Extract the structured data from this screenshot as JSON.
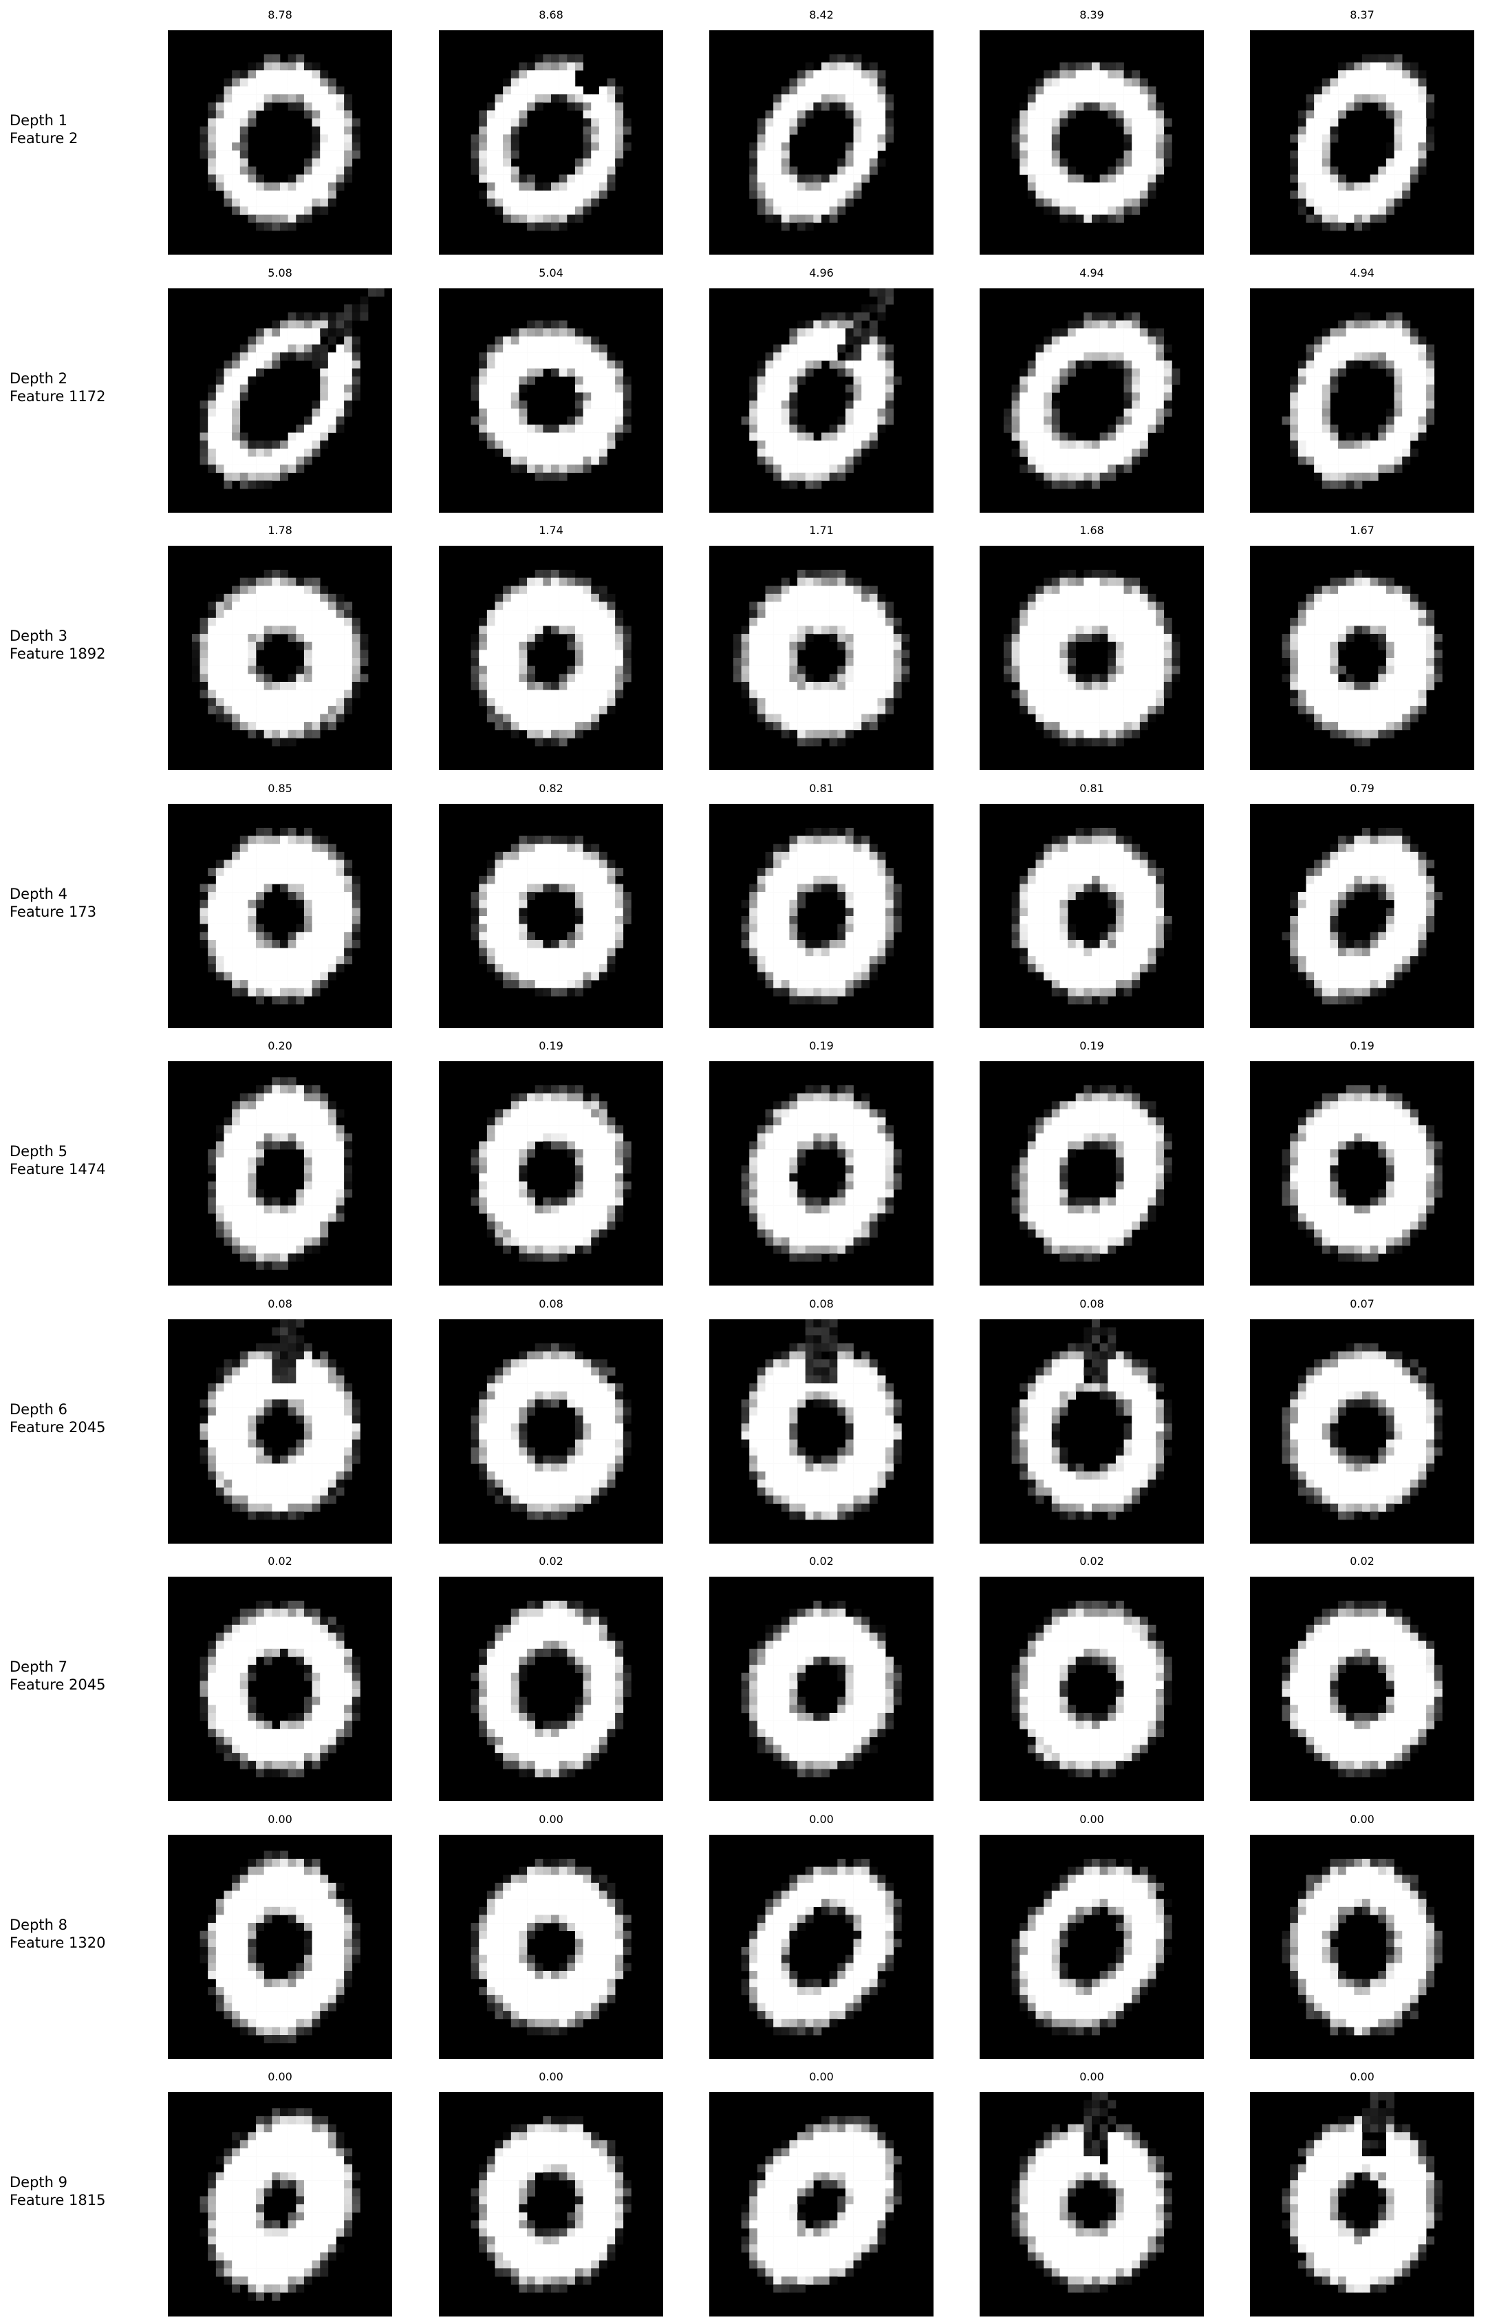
{
  "rows": [
    {
      "depth": "Depth 1",
      "feature": "Feature 2",
      "scores": [
        "8.78",
        "8.68",
        "8.42",
        "8.39",
        "8.37"
      ],
      "images": [
        {
          "rx": 0.32,
          "ry": 0.36,
          "rot": 15,
          "w": 0.2,
          "hole": 0.48,
          "shape": "ring"
        },
        {
          "rx": 0.31,
          "ry": 0.38,
          "rot": 25,
          "w": 0.18,
          "hole": 0.5,
          "shape": "open-ring"
        },
        {
          "rx": 0.26,
          "ry": 0.39,
          "rot": 30,
          "w": 0.18,
          "hole": 0.46,
          "shape": "ring"
        },
        {
          "rx": 0.33,
          "ry": 0.34,
          "rot": 10,
          "w": 0.22,
          "hole": 0.44,
          "shape": "ring"
        },
        {
          "rx": 0.28,
          "ry": 0.39,
          "rot": 25,
          "w": 0.18,
          "hole": 0.46,
          "shape": "ring"
        }
      ]
    },
    {
      "depth": "Depth 2",
      "feature": "Feature 1172",
      "scores": [
        "5.08",
        "5.04",
        "4.96",
        "4.94",
        "4.94"
      ],
      "images": [
        {
          "rx": 0.27,
          "ry": 0.42,
          "rot": 40,
          "w": 0.16,
          "hole": 0.52,
          "shape": "notch"
        },
        {
          "rx": 0.34,
          "ry": 0.32,
          "rot": 20,
          "w": 0.26,
          "hole": 0.36,
          "shape": "ring"
        },
        {
          "rx": 0.29,
          "ry": 0.38,
          "rot": 30,
          "w": 0.24,
          "hole": 0.4,
          "shape": "notch"
        },
        {
          "rx": 0.31,
          "ry": 0.4,
          "rot": 40,
          "w": 0.18,
          "hole": 0.48,
          "shape": "ring"
        },
        {
          "rx": 0.3,
          "ry": 0.38,
          "rot": 25,
          "w": 0.2,
          "hole": 0.46,
          "shape": "ring"
        }
      ]
    },
    {
      "depth": "Depth 3",
      "feature": "Feature 1892",
      "scores": [
        "1.78",
        "1.74",
        "1.71",
        "1.68",
        "1.67"
      ],
      "images": [
        {
          "rx": 0.36,
          "ry": 0.35,
          "rot": 10,
          "w": 0.3,
          "hole": 0.3,
          "shape": "ring"
        },
        {
          "rx": 0.33,
          "ry": 0.36,
          "rot": 15,
          "w": 0.28,
          "hole": 0.32,
          "shape": "ring"
        },
        {
          "rx": 0.36,
          "ry": 0.36,
          "rot": 0,
          "w": 0.3,
          "hole": 0.3,
          "shape": "ring"
        },
        {
          "rx": 0.36,
          "ry": 0.37,
          "rot": 0,
          "w": 0.34,
          "hole": 0.26,
          "shape": "ring"
        },
        {
          "rx": 0.33,
          "ry": 0.35,
          "rot": 5,
          "w": 0.26,
          "hole": 0.32,
          "shape": "ring"
        }
      ]
    },
    {
      "depth": "Depth 4",
      "feature": "Feature 173",
      "scores": [
        "0.85",
        "0.82",
        "0.81",
        "0.81",
        "0.79"
      ],
      "images": [
        {
          "rx": 0.34,
          "ry": 0.37,
          "rot": 10,
          "w": 0.3,
          "hole": 0.3,
          "shape": "ring"
        },
        {
          "rx": 0.33,
          "ry": 0.34,
          "rot": 15,
          "w": 0.26,
          "hole": 0.34,
          "shape": "ring"
        },
        {
          "rx": 0.32,
          "ry": 0.37,
          "rot": 20,
          "w": 0.26,
          "hole": 0.34,
          "shape": "ring"
        },
        {
          "rx": 0.33,
          "ry": 0.36,
          "rot": 10,
          "w": 0.28,
          "hole": 0.32,
          "shape": "ring"
        },
        {
          "rx": 0.29,
          "ry": 0.38,
          "rot": 30,
          "w": 0.24,
          "hole": 0.36,
          "shape": "ring"
        }
      ]
    },
    {
      "depth": "Depth 5",
      "feature": "Feature 1474",
      "scores": [
        "0.20",
        "0.19",
        "0.19",
        "0.19",
        "0.19"
      ],
      "images": [
        {
          "rx": 0.3,
          "ry": 0.39,
          "rot": 10,
          "w": 0.26,
          "hole": 0.34,
          "shape": "ring"
        },
        {
          "rx": 0.33,
          "ry": 0.37,
          "rot": 10,
          "w": 0.26,
          "hole": 0.34,
          "shape": "ring"
        },
        {
          "rx": 0.32,
          "ry": 0.37,
          "rot": 20,
          "w": 0.26,
          "hole": 0.34,
          "shape": "ring"
        },
        {
          "rx": 0.31,
          "ry": 0.38,
          "rot": 30,
          "w": 0.24,
          "hole": 0.36,
          "shape": "ring"
        },
        {
          "rx": 0.33,
          "ry": 0.36,
          "rot": 10,
          "w": 0.26,
          "hole": 0.34,
          "shape": "ring"
        }
      ]
    },
    {
      "depth": "Depth 6",
      "feature": "Feature 2045",
      "scores": [
        "0.08",
        "0.08",
        "0.08",
        "0.08",
        "0.07"
      ],
      "images": [
        {
          "rx": 0.34,
          "ry": 0.37,
          "rot": 5,
          "w": 0.28,
          "hole": 0.3,
          "shape": "notch"
        },
        {
          "rx": 0.33,
          "ry": 0.36,
          "rot": 15,
          "w": 0.24,
          "hole": 0.36,
          "shape": "ring"
        },
        {
          "rx": 0.34,
          "ry": 0.38,
          "rot": 0,
          "w": 0.26,
          "hole": 0.34,
          "shape": "notch"
        },
        {
          "rx": 0.33,
          "ry": 0.37,
          "rot": 5,
          "w": 0.18,
          "hole": 0.46,
          "shape": "notch"
        },
        {
          "rx": 0.33,
          "ry": 0.36,
          "rot": 15,
          "w": 0.24,
          "hole": 0.36,
          "shape": "ring"
        }
      ]
    },
    {
      "depth": "Depth 7",
      "feature": "Feature 2045",
      "scores": [
        "0.02",
        "0.02",
        "0.02",
        "0.02",
        "0.02"
      ],
      "images": [
        {
          "rx": 0.34,
          "ry": 0.36,
          "rot": 5,
          "w": 0.22,
          "hole": 0.4,
          "shape": "ring"
        },
        {
          "rx": 0.32,
          "ry": 0.38,
          "rot": 10,
          "w": 0.22,
          "hole": 0.42,
          "shape": "ring"
        },
        {
          "rx": 0.32,
          "ry": 0.36,
          "rot": 20,
          "w": 0.26,
          "hole": 0.32,
          "shape": "ring"
        },
        {
          "rx": 0.33,
          "ry": 0.37,
          "rot": 10,
          "w": 0.26,
          "hole": 0.34,
          "shape": "ring"
        },
        {
          "rx": 0.34,
          "ry": 0.36,
          "rot": 0,
          "w": 0.26,
          "hole": 0.34,
          "shape": "ring"
        }
      ]
    },
    {
      "depth": "Depth 8",
      "feature": "Feature 1320",
      "scores": [
        "0.00",
        "0.00",
        "0.00",
        "0.00",
        "0.00"
      ],
      "images": [
        {
          "rx": 0.32,
          "ry": 0.39,
          "rot": 5,
          "w": 0.26,
          "hole": 0.36,
          "shape": "ring"
        },
        {
          "rx": 0.33,
          "ry": 0.36,
          "rot": 15,
          "w": 0.28,
          "hole": 0.3,
          "shape": "ring"
        },
        {
          "rx": 0.29,
          "ry": 0.4,
          "rot": 35,
          "w": 0.2,
          "hole": 0.44,
          "shape": "ring"
        },
        {
          "rx": 0.3,
          "ry": 0.39,
          "rot": 35,
          "w": 0.22,
          "hole": 0.42,
          "shape": "ring"
        },
        {
          "rx": 0.32,
          "ry": 0.38,
          "rot": 0,
          "w": 0.22,
          "hole": 0.4,
          "shape": "ring"
        }
      ]
    },
    {
      "depth": "Depth 9",
      "feature": "Feature 1815",
      "scores": [
        "0.00",
        "0.00",
        "0.00",
        "0.00",
        "0.00"
      ],
      "images": [
        {
          "rx": 0.31,
          "ry": 0.4,
          "rot": 20,
          "w": 0.34,
          "hole": 0.24,
          "shape": "ring"
        },
        {
          "rx": 0.32,
          "ry": 0.37,
          "rot": 10,
          "w": 0.26,
          "hole": 0.34,
          "shape": "ring"
        },
        {
          "rx": 0.29,
          "ry": 0.4,
          "rot": 35,
          "w": 0.3,
          "hole": 0.26,
          "shape": "ring"
        },
        {
          "rx": 0.33,
          "ry": 0.36,
          "rot": 5,
          "w": 0.3,
          "hole": 0.3,
          "shape": "notch"
        },
        {
          "rx": 0.32,
          "ry": 0.38,
          "rot": 10,
          "w": 0.28,
          "hole": 0.3,
          "shape": "notch"
        }
      ]
    }
  ]
}
